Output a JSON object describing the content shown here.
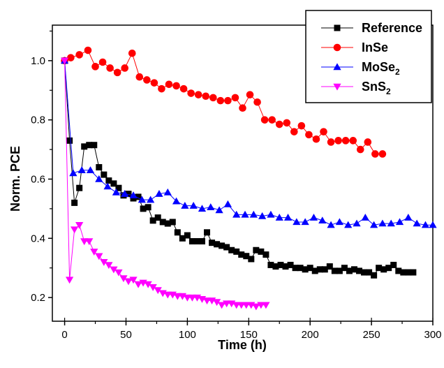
{
  "chart_data": {
    "type": "line",
    "xlabel": "Time (h)",
    "ylabel": "Norm. PCE",
    "xlim": [
      -10,
      300
    ],
    "ylim": [
      0.12,
      1.12
    ],
    "x_ticks": [
      0,
      50,
      100,
      150,
      200,
      250,
      300
    ],
    "y_ticks": [
      0.2,
      0.4,
      0.6,
      0.8,
      1.0
    ],
    "x_tick_labels": [
      "0",
      "50",
      "100",
      "150",
      "200",
      "250",
      "300"
    ],
    "y_tick_labels": [
      "0.2",
      "0.4",
      "0.6",
      "0.8",
      "1.0"
    ],
    "legend_position": "top-right",
    "grid": false,
    "series": [
      {
        "name": "Reference",
        "name_main": "Reference",
        "name_sub": "",
        "color": "#000000",
        "marker": "square",
        "x": [
          0,
          4,
          8,
          12,
          16,
          20,
          24,
          28,
          32,
          36,
          40,
          44,
          48,
          52,
          56,
          60,
          64,
          68,
          72,
          76,
          80,
          84,
          88,
          92,
          96,
          100,
          104,
          108,
          112,
          116,
          120,
          124,
          128,
          132,
          136,
          140,
          144,
          148,
          152,
          156,
          160,
          164,
          168,
          172,
          176,
          180,
          184,
          188,
          192,
          196,
          200,
          204,
          208,
          212,
          216,
          220,
          224,
          228,
          232,
          236,
          240,
          244,
          248,
          252,
          256,
          260,
          264,
          268,
          272,
          276,
          280,
          284
        ],
        "y": [
          1.0,
          0.73,
          0.52,
          0.57,
          0.71,
          0.715,
          0.715,
          0.64,
          0.615,
          0.595,
          0.585,
          0.57,
          0.545,
          0.55,
          0.535,
          0.54,
          0.5,
          0.505,
          0.46,
          0.47,
          0.455,
          0.45,
          0.455,
          0.42,
          0.4,
          0.41,
          0.39,
          0.39,
          0.39,
          0.42,
          0.385,
          0.38,
          0.375,
          0.37,
          0.36,
          0.355,
          0.345,
          0.34,
          0.33,
          0.36,
          0.355,
          0.345,
          0.31,
          0.305,
          0.31,
          0.305,
          0.31,
          0.3,
          0.3,
          0.295,
          0.3,
          0.29,
          0.295,
          0.295,
          0.305,
          0.29,
          0.29,
          0.3,
          0.29,
          0.295,
          0.29,
          0.285,
          0.285,
          0.275,
          0.3,
          0.295,
          0.3,
          0.31,
          0.29,
          0.285,
          0.285,
          0.285
        ]
      },
      {
        "name": "InSe",
        "name_main": "InSe",
        "name_sub": "",
        "color": "#ff0000",
        "marker": "circle",
        "x": [
          0,
          5,
          12,
          19,
          25,
          31,
          37,
          43,
          49,
          55,
          61,
          67,
          73,
          79,
          85,
          91,
          97,
          103,
          109,
          115,
          121,
          127,
          133,
          139,
          145,
          151,
          157,
          163,
          169,
          175,
          181,
          187,
          193,
          199,
          205,
          211,
          217,
          223,
          229,
          235,
          241,
          247,
          253,
          259
        ],
        "y": [
          1.0,
          1.01,
          1.02,
          1.035,
          0.98,
          0.995,
          0.975,
          0.96,
          0.975,
          1.025,
          0.945,
          0.935,
          0.925,
          0.905,
          0.92,
          0.915,
          0.905,
          0.89,
          0.885,
          0.88,
          0.875,
          0.865,
          0.865,
          0.875,
          0.84,
          0.885,
          0.86,
          0.8,
          0.8,
          0.785,
          0.79,
          0.76,
          0.78,
          0.75,
          0.735,
          0.76,
          0.725,
          0.73,
          0.73,
          0.73,
          0.7,
          0.725,
          0.685,
          0.685
        ]
      },
      {
        "name": "MoSe2",
        "name_main": "MoSe",
        "name_sub": "2",
        "color": "#0000ff",
        "marker": "triangle-up",
        "x": [
          0,
          7,
          14,
          21,
          28,
          35,
          42,
          49,
          56,
          63,
          70,
          77,
          84,
          91,
          98,
          105,
          112,
          119,
          126,
          133,
          140,
          147,
          154,
          161,
          168,
          175,
          182,
          189,
          196,
          203,
          210,
          217,
          224,
          231,
          238,
          245,
          252,
          259,
          266,
          273,
          280,
          287,
          294,
          300
        ],
        "y": [
          1.0,
          0.62,
          0.63,
          0.63,
          0.6,
          0.575,
          0.555,
          0.55,
          0.545,
          0.53,
          0.53,
          0.55,
          0.555,
          0.525,
          0.51,
          0.51,
          0.5,
          0.505,
          0.495,
          0.515,
          0.48,
          0.48,
          0.48,
          0.475,
          0.48,
          0.47,
          0.47,
          0.455,
          0.455,
          0.47,
          0.46,
          0.445,
          0.455,
          0.445,
          0.45,
          0.47,
          0.445,
          0.45,
          0.45,
          0.455,
          0.47,
          0.45,
          0.445,
          0.445
        ]
      },
      {
        "name": "SnS2",
        "name_main": "SnS",
        "name_sub": "2",
        "color": "#ff00ff",
        "marker": "triangle-down",
        "x": [
          0,
          4,
          8,
          12,
          16,
          20,
          24,
          28,
          32,
          36,
          40,
          44,
          48,
          52,
          56,
          60,
          64,
          68,
          72,
          76,
          80,
          84,
          88,
          92,
          96,
          100,
          104,
          108,
          112,
          116,
          120,
          124,
          128,
          132,
          136,
          140,
          144,
          148,
          152,
          156,
          160,
          164
        ],
        "y": [
          1.0,
          0.26,
          0.43,
          0.445,
          0.39,
          0.39,
          0.355,
          0.34,
          0.32,
          0.31,
          0.295,
          0.285,
          0.265,
          0.255,
          0.26,
          0.245,
          0.25,
          0.245,
          0.235,
          0.225,
          0.215,
          0.21,
          0.21,
          0.205,
          0.205,
          0.2,
          0.2,
          0.2,
          0.195,
          0.19,
          0.19,
          0.185,
          0.175,
          0.18,
          0.18,
          0.175,
          0.175,
          0.175,
          0.175,
          0.17,
          0.175,
          0.175
        ]
      }
    ]
  }
}
